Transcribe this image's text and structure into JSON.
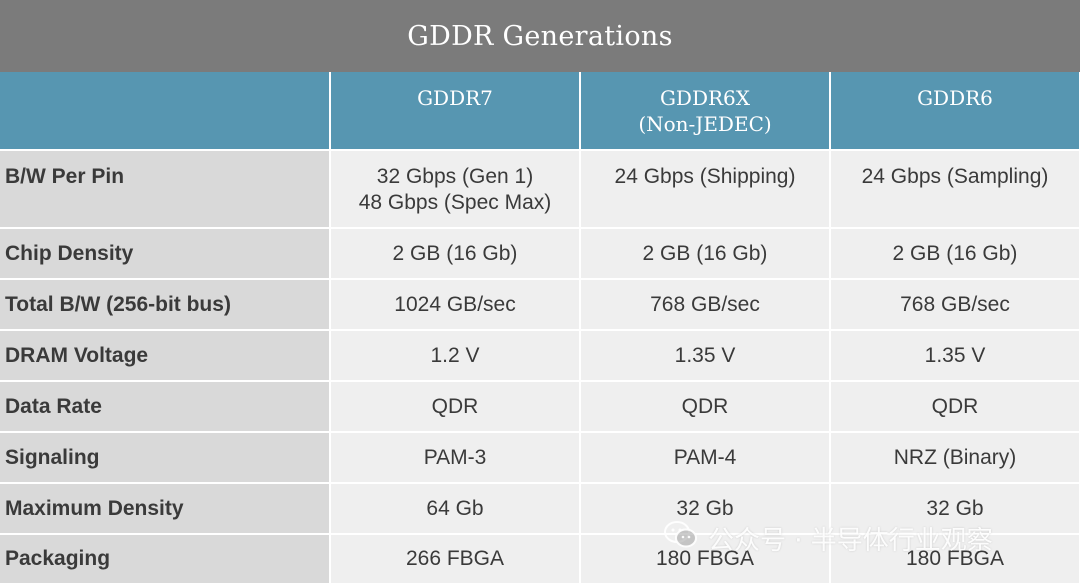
{
  "chart_data": {
    "type": "table",
    "title": "GDDR Generations",
    "columns": [
      "",
      "GDDR7",
      "GDDR6X\n(Non-JEDEC)",
      "GDDR6"
    ],
    "rows": [
      {
        "label": "B/W Per Pin",
        "values": [
          "32 Gbps (Gen 1)\n48 Gbps (Spec Max)",
          "24 Gbps (Shipping)",
          "24 Gbps (Sampling)"
        ]
      },
      {
        "label": "Chip Density",
        "values": [
          "2 GB (16 Gb)",
          "2 GB (16 Gb)",
          "2 GB (16 Gb)"
        ]
      },
      {
        "label": "Total B/W (256-bit bus)",
        "values": [
          "1024 GB/sec",
          "768 GB/sec",
          "768 GB/sec"
        ]
      },
      {
        "label": "DRAM Voltage",
        "values": [
          "1.2 V",
          "1.35 V",
          "1.35 V"
        ]
      },
      {
        "label": "Data Rate",
        "values": [
          "QDR",
          "QDR",
          "QDR"
        ]
      },
      {
        "label": "Signaling",
        "values": [
          "PAM-3",
          "PAM-4",
          "NRZ (Binary)"
        ]
      },
      {
        "label": "Maximum Density",
        "values": [
          "64 Gb",
          "32 Gb",
          "32 Gb"
        ]
      },
      {
        "label": "Packaging",
        "values": [
          "266 FBGA",
          "180 FBGA",
          "180 FBGA"
        ]
      }
    ]
  },
  "watermark": {
    "text": "公众号 · 半导体行业观察",
    "icon": "wechat-icon"
  },
  "colors": {
    "title_bg": "#7b7b7b",
    "header_bg": "#5796b1",
    "label_bg": "#d9d9d9",
    "value_bg": "#efefef"
  }
}
